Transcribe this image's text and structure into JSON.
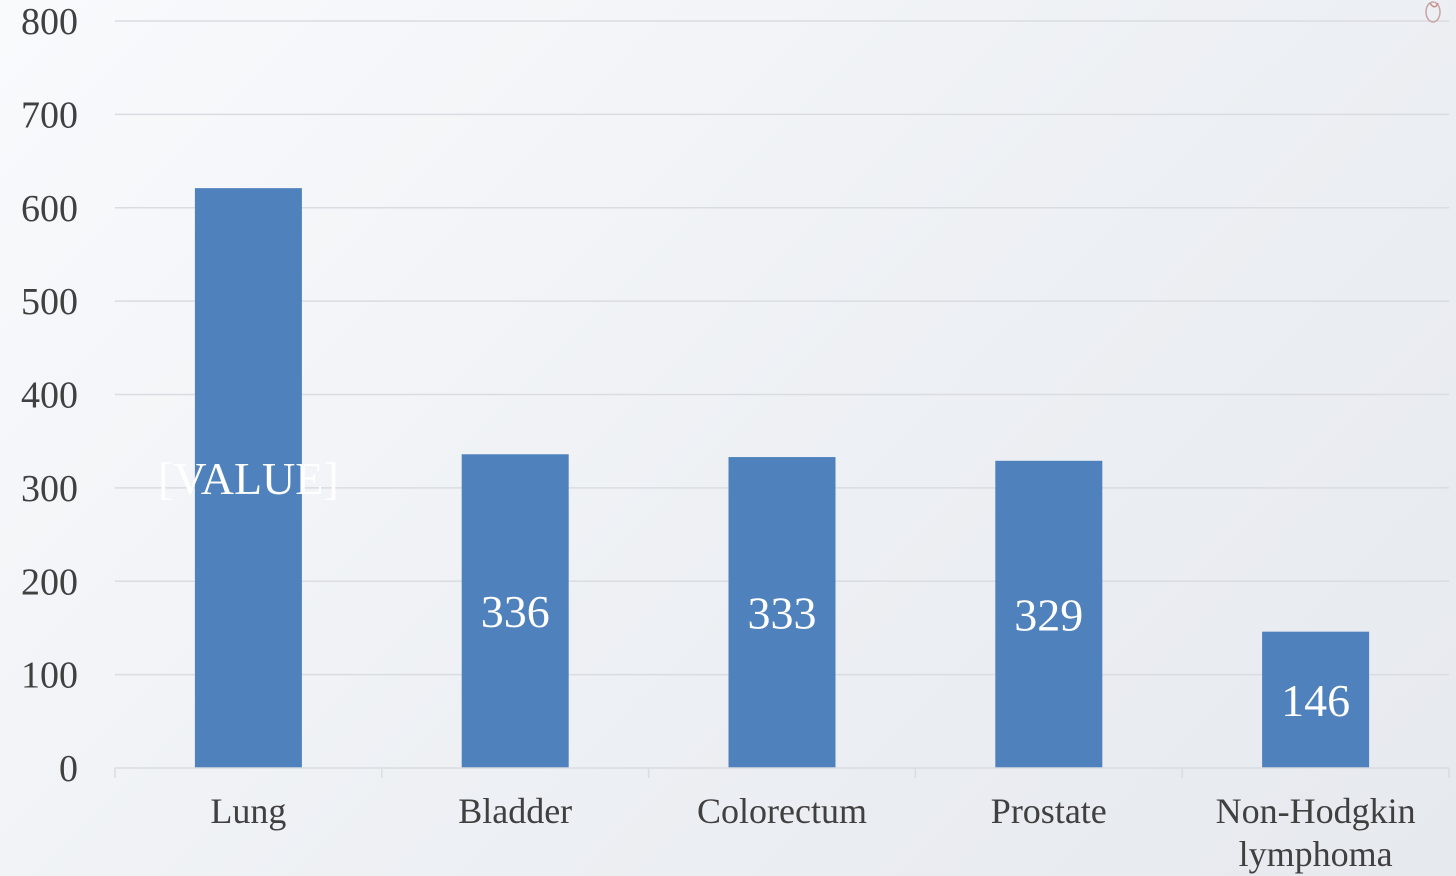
{
  "chart_data": {
    "type": "bar",
    "title": "",
    "xlabel": "",
    "ylabel": "",
    "ylim": [
      0,
      800
    ],
    "yticks": [
      0,
      100,
      200,
      300,
      400,
      500,
      600,
      700,
      800
    ],
    "grid": true,
    "legend": "none",
    "categories": [
      [
        "Lung"
      ],
      [
        "Bladder"
      ],
      [
        "Colorectum"
      ],
      [
        "Prostate"
      ],
      [
        "Non-Hodgkin",
        "lymphoma"
      ]
    ],
    "values": [
      621,
      336,
      333,
      329,
      146
    ],
    "data_labels": [
      "[VALUE]",
      "336",
      "333",
      "329",
      "146"
    ],
    "bar_color": "#4f81bd",
    "label_color": "#ffffff"
  }
}
